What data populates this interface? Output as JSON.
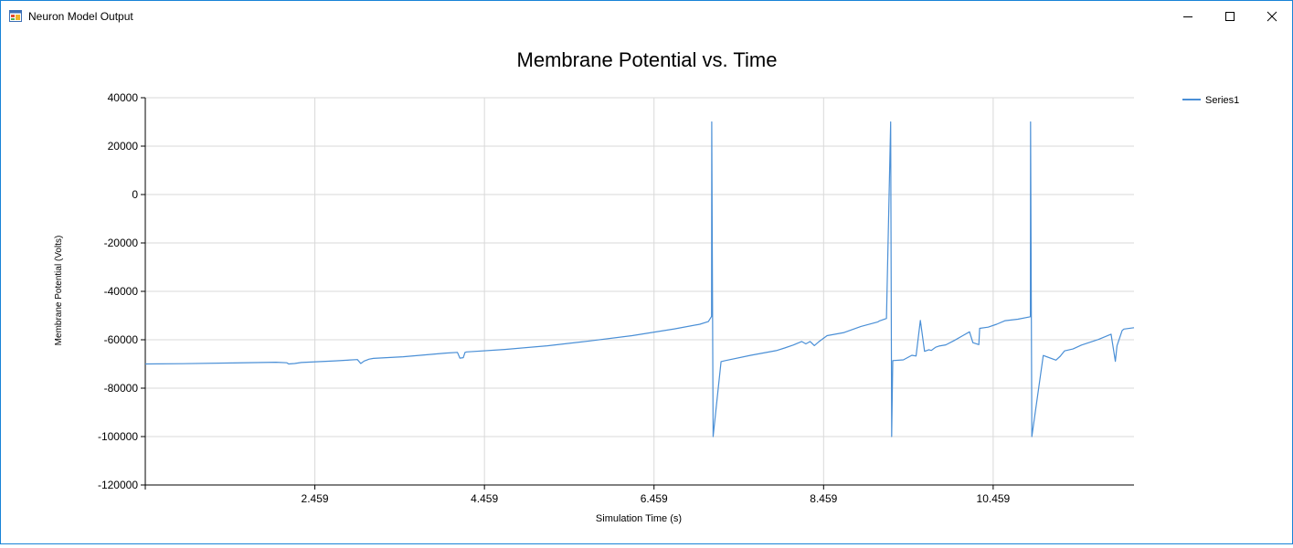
{
  "window": {
    "title": "Neuron Model Output",
    "icon": "app-form-icon",
    "controls": [
      "minimize-icon",
      "maximize-icon",
      "close-icon"
    ]
  },
  "chart_data": {
    "type": "line",
    "title": "Membrane Potential vs. Time",
    "xlabel": "Simulation Time (s)",
    "ylabel": "Membrane Potential (Volts)",
    "xlim": [
      0.459,
      12.12
    ],
    "ylim": [
      -120000,
      40000
    ],
    "x_ticks": [
      "2.459",
      "4.459",
      "6.459",
      "8.459",
      "10.459"
    ],
    "y_ticks": [
      "40000",
      "20000",
      "0",
      "-20000",
      "-40000",
      "-60000",
      "-80000",
      "-100000",
      "-120000"
    ],
    "grid": true,
    "legend_position": "top-right",
    "series": [
      {
        "name": "Series1",
        "color": "#4a8fd6",
        "x": [
          0.459,
          0.9,
          1.5,
          2.0,
          2.13,
          2.15,
          2.22,
          2.3,
          2.7,
          2.96,
          3.0,
          3.04,
          3.1,
          3.15,
          3.5,
          4.0,
          4.14,
          4.17,
          4.21,
          4.23,
          4.25,
          4.7,
          5.2,
          5.7,
          6.2,
          6.7,
          7.0,
          7.1,
          7.13,
          7.138,
          7.14,
          7.156,
          7.25,
          7.3,
          7.6,
          7.9,
          8.0,
          8.1,
          8.2,
          8.25,
          8.3,
          8.35,
          8.4,
          8.5,
          8.7,
          8.9,
          9.1,
          9.12,
          9.2,
          9.25,
          9.262,
          9.275,
          9.4,
          9.5,
          9.55,
          9.6,
          9.65,
          9.7,
          9.73,
          9.78,
          9.82,
          9.9,
          10.0,
          10.1,
          10.18,
          10.22,
          10.29,
          10.3,
          10.4,
          10.5,
          10.6,
          10.75,
          10.898,
          10.9,
          10.915,
          11.05,
          11.2,
          11.25,
          11.3,
          11.4,
          11.5,
          11.7,
          11.85,
          11.9,
          11.92,
          11.98,
          12.0,
          12.12
        ],
        "values": [
          -70000,
          -69900,
          -69600,
          -69300,
          -69500,
          -70000,
          -69800,
          -69400,
          -68700,
          -68200,
          -69800,
          -68800,
          -68000,
          -67700,
          -67000,
          -65500,
          -65200,
          -67600,
          -67400,
          -65200,
          -65000,
          -64000,
          -62500,
          -60500,
          -58300,
          -55500,
          -53600,
          -52500,
          -50800,
          -50300,
          30000,
          -100000,
          -69000,
          -68600,
          -66400,
          -64500,
          -63400,
          -62200,
          -60700,
          -61700,
          -60700,
          -62400,
          -60900,
          -58300,
          -57000,
          -54500,
          -52600,
          -52200,
          -51200,
          30000,
          -100000,
          -68600,
          -68300,
          -66400,
          -66700,
          -52000,
          -64800,
          -64100,
          -64400,
          -63100,
          -62600,
          -62100,
          -60300,
          -58300,
          -56700,
          -61200,
          -62000,
          -55300,
          -54800,
          -53600,
          -52100,
          -51500,
          -50500,
          30000,
          -100000,
          -66500,
          -68400,
          -66800,
          -64600,
          -63800,
          -62200,
          -59900,
          -57700,
          -68900,
          -62500,
          -56200,
          -55600,
          -55000
        ]
      }
    ]
  }
}
